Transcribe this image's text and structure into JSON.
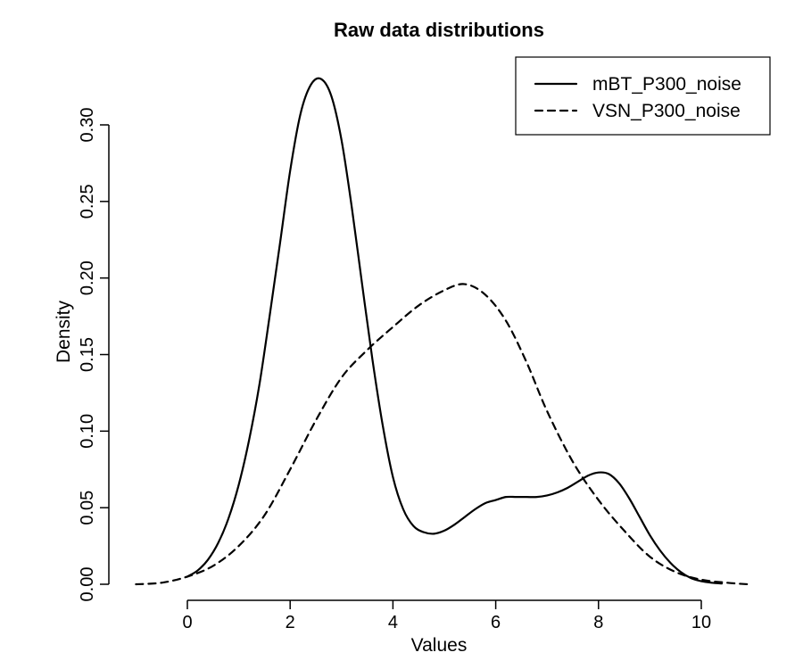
{
  "chart_data": {
    "type": "line",
    "title": "Raw data distributions",
    "xlabel": "Values",
    "ylabel": "Density",
    "xlim": [
      -1.2,
      10.9
    ],
    "ylim": [
      0,
      0.33
    ],
    "x_ticks": [
      0,
      2,
      4,
      6,
      8,
      10
    ],
    "x_tick_labels": [
      "0",
      "2",
      "4",
      "6",
      "8",
      "10"
    ],
    "y_ticks": [
      0.0,
      0.05,
      0.1,
      0.15,
      0.2,
      0.25,
      0.3
    ],
    "y_tick_labels": [
      "0.00",
      "0.05",
      "0.10",
      "0.15",
      "0.20",
      "0.25",
      "0.30"
    ],
    "legend_position": "top-right",
    "grid": false,
    "series": [
      {
        "name": "mBT_P300_noise",
        "line_style": "solid",
        "color": "#000000",
        "x": [
          0.0,
          0.2,
          0.4,
          0.6,
          0.8,
          1.0,
          1.2,
          1.4,
          1.6,
          1.8,
          2.0,
          2.2,
          2.4,
          2.6,
          2.8,
          3.0,
          3.2,
          3.4,
          3.6,
          3.8,
          4.0,
          4.2,
          4.4,
          4.6,
          4.8,
          5.0,
          5.2,
          5.4,
          5.6,
          5.8,
          6.0,
          6.2,
          6.4,
          6.6,
          6.8,
          7.0,
          7.2,
          7.4,
          7.6,
          7.8,
          8.0,
          8.2,
          8.4,
          8.6,
          8.8,
          9.0,
          9.2,
          9.4,
          9.6,
          9.8,
          10.0,
          10.2,
          10.4
        ],
        "y": [
          0.005,
          0.009,
          0.016,
          0.027,
          0.043,
          0.065,
          0.094,
          0.13,
          0.175,
          0.222,
          0.27,
          0.307,
          0.326,
          0.33,
          0.319,
          0.29,
          0.246,
          0.196,
          0.147,
          0.104,
          0.07,
          0.049,
          0.038,
          0.034,
          0.033,
          0.035,
          0.039,
          0.044,
          0.049,
          0.053,
          0.055,
          0.057,
          0.057,
          0.057,
          0.057,
          0.058,
          0.06,
          0.063,
          0.067,
          0.071,
          0.073,
          0.072,
          0.066,
          0.056,
          0.044,
          0.032,
          0.022,
          0.014,
          0.008,
          0.004,
          0.002,
          0.001,
          0.0005
        ]
      },
      {
        "name": "VSN_P300_noise",
        "line_style": "dashed",
        "color": "#000000",
        "x": [
          -1.0,
          -0.5,
          0.0,
          0.5,
          1.0,
          1.5,
          2.0,
          2.5,
          3.0,
          3.5,
          4.0,
          4.5,
          5.0,
          5.4,
          5.8,
          6.2,
          6.6,
          7.0,
          7.5,
          8.0,
          8.5,
          9.0,
          9.5,
          10.0,
          10.5,
          10.9
        ],
        "y": [
          0.0,
          0.001,
          0.005,
          0.012,
          0.025,
          0.045,
          0.075,
          0.107,
          0.135,
          0.153,
          0.168,
          0.182,
          0.192,
          0.196,
          0.189,
          0.172,
          0.145,
          0.113,
          0.08,
          0.055,
          0.035,
          0.018,
          0.008,
          0.003,
          0.001,
          0.0
        ]
      }
    ]
  }
}
